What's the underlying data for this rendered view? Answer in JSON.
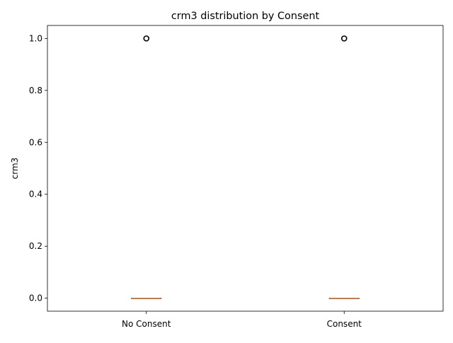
{
  "chart_data": {
    "type": "box",
    "title": "crm3 distribution by Consent",
    "xlabel": "",
    "ylabel": "crm3",
    "ylim": [
      -0.05,
      1.05
    ],
    "yticks": [
      0.0,
      0.2,
      0.4,
      0.6,
      0.8,
      1.0
    ],
    "ytick_labels": [
      "0.0",
      "0.2",
      "0.4",
      "0.6",
      "0.8",
      "1.0"
    ],
    "categories": [
      "No Consent",
      "Consent"
    ],
    "boxes": [
      {
        "category": "No Consent",
        "q1": 0,
        "median": 0,
        "q3": 0,
        "whisker_low": 0,
        "whisker_high": 0,
        "outliers": [
          1.0
        ]
      },
      {
        "category": "Consent",
        "q1": 0,
        "median": 0,
        "q3": 0,
        "whisker_low": 0,
        "whisker_high": 0,
        "outliers": [
          1.0
        ]
      }
    ],
    "grid": false,
    "colors": {
      "box": "#000000",
      "median": "#e07b39",
      "outlier": "#000000"
    }
  }
}
